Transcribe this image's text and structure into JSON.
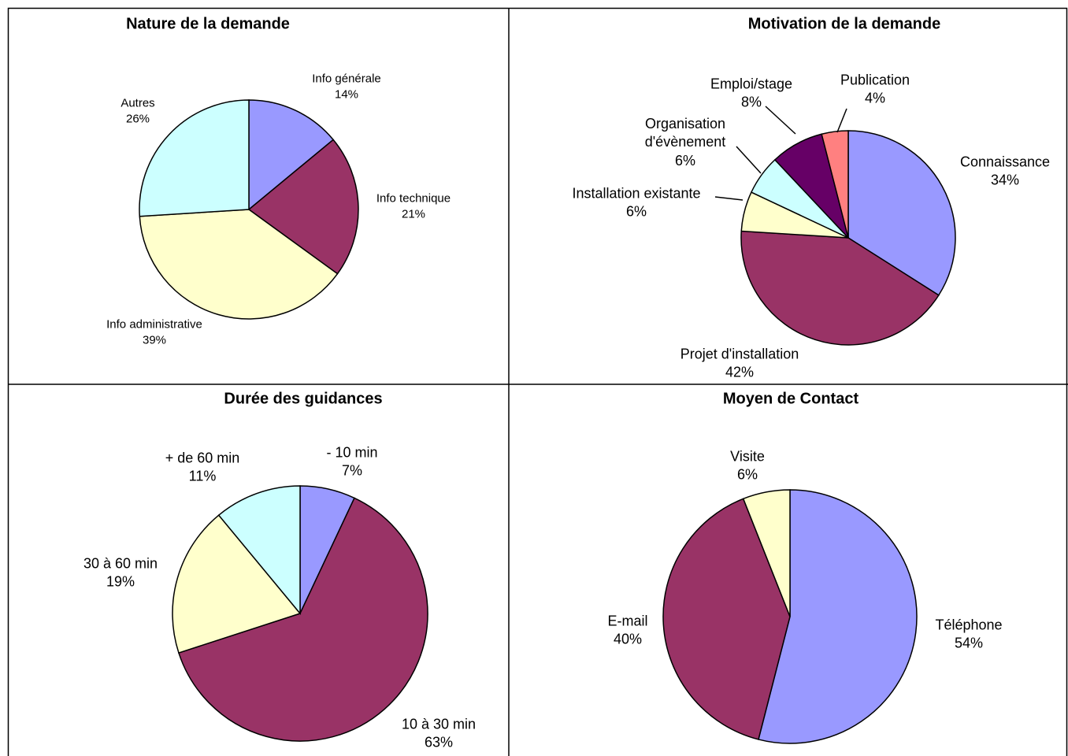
{
  "chart_data": [
    {
      "type": "pie",
      "title": "Nature de la demande",
      "categories": [
        "Info générale",
        "Info technique",
        "Info administrative",
        "Autres"
      ],
      "values": [
        14,
        21,
        39,
        26
      ],
      "value_labels": [
        "14%",
        "21%",
        "39%",
        "26%"
      ],
      "colors": [
        "#9999ff",
        "#993366",
        "#ffffcc",
        "#ccffff"
      ]
    },
    {
      "type": "pie",
      "title": "Motivation de la demande",
      "categories": [
        "Connaissance",
        "Projet d'installation",
        "Installation existante",
        "Organisation d'évènement",
        "Emploi/stage",
        "Publication"
      ],
      "values": [
        34,
        42,
        6,
        6,
        8,
        4
      ],
      "value_labels": [
        "34%",
        "42%",
        "6%",
        "6%",
        "8%",
        "4%"
      ],
      "colors": [
        "#9999ff",
        "#993366",
        "#ffffcc",
        "#ccffff",
        "#660066",
        "#ff8080"
      ]
    },
    {
      "type": "pie",
      "title": "Durée des guidances",
      "categories": [
        "- 10 min",
        "10 à 30 min",
        "30 à 60 min",
        "+ de 60 min"
      ],
      "values": [
        7,
        63,
        19,
        11
      ],
      "value_labels": [
        "7%",
        "63%",
        "19%",
        "11%"
      ],
      "colors": [
        "#9999ff",
        "#993366",
        "#ffffcc",
        "#ccffff"
      ]
    },
    {
      "type": "pie",
      "title": "Moyen de Contact",
      "categories": [
        "Téléphone",
        "E-mail",
        "Visite"
      ],
      "values": [
        54,
        40,
        6
      ],
      "value_labels": [
        "54%",
        "40%",
        "6%"
      ],
      "colors": [
        "#9999ff",
        "#993366",
        "#ffffcc"
      ]
    }
  ]
}
